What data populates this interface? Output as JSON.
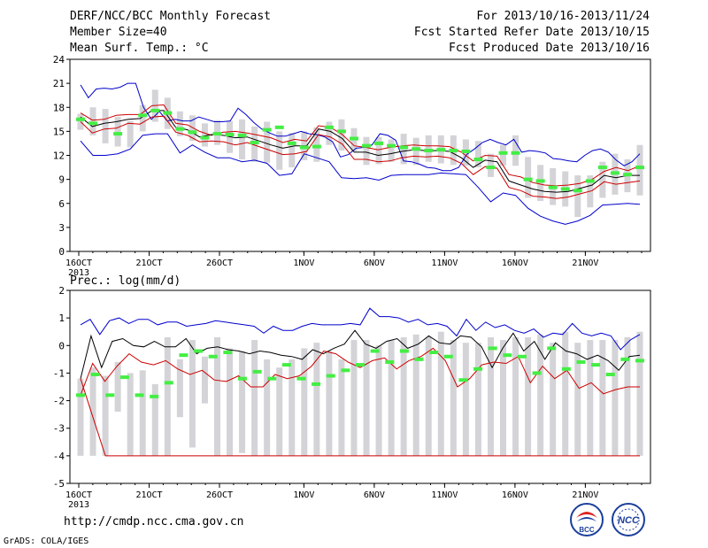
{
  "header": {
    "title": "DERF/NCC/BCC Monthly Forecast",
    "member_size": "Member Size=40",
    "variable": "Mean Surf. Temp.: °C",
    "period": "For 2013/10/16-2013/11/24",
    "start_date": "Fcst Started Refer Date 2013/10/15",
    "produced_date": "Fcst Produced Date 2013/10/16"
  },
  "panel2_label": "Prec.: log(mm/d)",
  "footer": {
    "url": "http://cmdp.ncc.cma.gov.cn",
    "credit": "GrADS: COLA/IGES",
    "logo1_text": "BCC",
    "logo2_text": "NCC"
  },
  "x_ticks": [
    {
      "day": 0,
      "label": "16OCT"
    },
    {
      "day": 5,
      "label": "21OCT"
    },
    {
      "day": 10,
      "label": "26OCT"
    },
    {
      "day": 16,
      "label": "1NOV"
    },
    {
      "day": 21,
      "label": "6NOV"
    },
    {
      "day": 26,
      "label": "11NOV"
    },
    {
      "day": 31,
      "label": "16NOV"
    },
    {
      "day": 36,
      "label": "21NOV"
    }
  ],
  "x_year_label": "2013",
  "colors": {
    "max": "#0000cc",
    "min": "#0000cc",
    "mean": "#000000",
    "spread": "#cc0000",
    "obs": "#44ee44",
    "box": "#d4d4d8"
  },
  "chart_data": [
    {
      "type": "line",
      "title": "Mean Surf. Temp.: °C",
      "ylim": [
        0,
        24
      ],
      "yticks": [
        0,
        3,
        6,
        9,
        12,
        15,
        18,
        21,
        24
      ],
      "x_days": 40,
      "series": [
        {
          "key": "max",
          "values": [
            20.8,
            19.2,
            20.3,
            20.4,
            20.3,
            20.5,
            21.0,
            21.0,
            18.0,
            16.5,
            17.5,
            16.3,
            16.5,
            16.3,
            16.3,
            16.8,
            16.5,
            16.2,
            16.2,
            16.3,
            17.9,
            17.1,
            16.1,
            15.3,
            14.8,
            14.4,
            14.4,
            14.7,
            15.0,
            14.7,
            14.6,
            14.3,
            13.7,
            11.8,
            12.1,
            12.9,
            13.0,
            13.3,
            14.7,
            14.5,
            13.9,
            11.3,
            11.2,
            10.9,
            10.5,
            10.4,
            10.1,
            10.1,
            10.5,
            12.1,
            12.8,
            13.6,
            14.0,
            13.6,
            13.3,
            14.0,
            12.4,
            12.6,
            12.5,
            12.3,
            11.6,
            11.5,
            11.3,
            11.2,
            12.0,
            12.6,
            12.8,
            12.4,
            11.4,
            10.7,
            11.2,
            12.2
          ]
        },
        {
          "key": "ci_upper",
          "values": [
            17.3,
            16.4,
            16.5,
            17.0,
            17.1,
            17.1,
            18.2,
            18.3,
            16.0,
            15.8,
            15.0,
            14.5,
            14.9,
            15.0,
            14.8,
            14.5,
            14.2,
            13.6,
            14.0,
            13.8,
            15.7,
            15.5,
            14.6,
            13.2,
            13.0,
            12.7,
            13.0,
            13.2,
            13.3,
            13.2,
            13.2,
            13.1,
            12.4,
            11.3,
            12.0,
            11.9,
            9.6,
            9.3,
            8.6,
            8.3,
            8.2,
            8.3,
            8.5,
            9.0,
            10.0,
            10.5,
            10.1,
            10.7
          ]
        },
        {
          "key": "mean",
          "values": [
            16.8,
            15.6,
            16.0,
            16.2,
            16.5,
            16.6,
            17.6,
            17.6,
            15.5,
            15.2,
            14.3,
            14.6,
            14.5,
            14.2,
            14.3,
            13.8,
            13.3,
            12.9,
            13.2,
            13.2,
            15.3,
            15.0,
            14.1,
            12.4,
            12.4,
            12.0,
            12.2,
            12.5,
            12.7,
            12.6,
            12.6,
            12.5,
            11.7,
            10.5,
            11.4,
            11.2,
            8.8,
            8.3,
            7.8,
            7.5,
            7.4,
            7.5,
            7.9,
            8.3,
            9.5,
            9.2,
            9.5,
            9.5
          ]
        },
        {
          "key": "ci_lower",
          "values": [
            16.2,
            14.8,
            15.3,
            15.4,
            16.0,
            15.9,
            16.8,
            16.9,
            14.9,
            14.5,
            13.7,
            13.8,
            13.7,
            13.3,
            13.6,
            13.1,
            12.6,
            12.1,
            12.2,
            12.5,
            14.6,
            14.3,
            13.4,
            11.5,
            11.5,
            11.2,
            11.3,
            11.7,
            11.9,
            11.8,
            11.9,
            11.7,
            11.0,
            9.6,
            10.6,
            10.4,
            8.0,
            7.6,
            6.9,
            6.8,
            6.6,
            6.8,
            7.2,
            7.6,
            8.7,
            8.4,
            8.6,
            8.8
          ]
        },
        {
          "key": "min",
          "values": [
            13.8,
            12.0,
            12.0,
            12.2,
            12.8,
            14.5,
            14.7,
            14.7,
            12.3,
            13.3,
            12.4,
            11.7,
            11.7,
            11.2,
            11.4,
            11.0,
            9.5,
            9.7,
            12.2,
            11.7,
            11.2,
            9.2,
            9.1,
            9.2,
            8.9,
            9.5,
            9.6,
            9.6,
            9.6,
            9.8,
            9.7,
            9.6,
            8.0,
            6.2,
            7.3,
            7.0,
            5.4,
            4.4,
            3.8,
            3.4,
            3.8,
            4.5,
            5.8,
            5.9,
            6.0,
            5.9
          ]
        }
      ],
      "obs": [
        16.5,
        16.0,
        null,
        14.7,
        null,
        17.0,
        17.6,
        17.3,
        15.3,
        14.9,
        14.2,
        14.7,
        14.6,
        14.5,
        13.6,
        15.2,
        15.5,
        13.5,
        13.0,
        13.1,
        15.5,
        15.0,
        14.1,
        13.2,
        13.5,
        13.2,
        13.0,
        12.8,
        12.6,
        12.7,
        12.6,
        12.5,
        11.5,
        10.5,
        12.3,
        12.3,
        9.0,
        8.8,
        8.0,
        7.8,
        7.6,
        8.8,
        10.5,
        9.8,
        9.6,
        10.5
      ],
      "boxes": [
        [
          15.2,
          17.2
        ],
        [
          14.5,
          18.0
        ],
        [
          13.5,
          17.8
        ],
        [
          13.1,
          16.8
        ],
        [
          13.0,
          16.3
        ],
        [
          15.0,
          18.3
        ],
        [
          16.2,
          20.2
        ],
        [
          15.3,
          19.2
        ],
        [
          14.4,
          17.5
        ],
        [
          13.8,
          17.0
        ],
        [
          13.1,
          16.0
        ],
        [
          13.3,
          16.4
        ],
        [
          12.3,
          16.3
        ],
        [
          11.5,
          16.5
        ],
        [
          11.2,
          15.6
        ],
        [
          11.1,
          16.2
        ],
        [
          10.2,
          15.0
        ],
        [
          10.5,
          14.8
        ],
        [
          11.4,
          15.0
        ],
        [
          11.2,
          15.5
        ],
        [
          13.3,
          16.2
        ],
        [
          12.6,
          16.5
        ],
        [
          12.5,
          15.4
        ],
        [
          10.8,
          14.3
        ],
        [
          10.9,
          14.3
        ],
        [
          11.2,
          14.0
        ],
        [
          10.9,
          14.7
        ],
        [
          10.8,
          14.2
        ],
        [
          11.2,
          14.5
        ],
        [
          11.0,
          14.5
        ],
        [
          10.8,
          14.5
        ],
        [
          10.7,
          14.0
        ],
        [
          10.5,
          13.8
        ],
        [
          9.3,
          12.2
        ],
        [
          10.7,
          13.3
        ],
        [
          10.7,
          14.5
        ],
        [
          6.7,
          11.8
        ],
        [
          6.3,
          10.8
        ],
        [
          5.8,
          10.4
        ],
        [
          5.6,
          10.0
        ],
        [
          4.3,
          9.5
        ],
        [
          5.5,
          9.5
        ],
        [
          6.7,
          11.2
        ],
        [
          7.1,
          12.2
        ],
        [
          7.4,
          11.5
        ],
        [
          7.0,
          13.3
        ]
      ]
    },
    {
      "type": "line",
      "title": "Prec.: log(mm/d)",
      "ylim": [
        -5,
        2
      ],
      "yticks": [
        -5,
        -4,
        -3,
        -2,
        -1,
        0,
        1,
        2
      ],
      "x_days": 40,
      "series": [
        {
          "key": "max",
          "values": [
            0.75,
            0.95,
            0.4,
            0.9,
            1.0,
            0.8,
            0.95,
            0.95,
            0.75,
            0.85,
            0.85,
            0.7,
            0.75,
            0.8,
            0.9,
            0.85,
            0.8,
            0.75,
            0.7,
            0.45,
            0.7,
            0.55,
            0.55,
            0.7,
            0.8,
            0.75,
            0.75,
            0.75,
            0.8,
            0.75,
            1.35,
            1.05,
            1.05,
            1.0,
            0.85,
            0.95,
            0.75,
            0.8,
            0.7,
            0.35,
            0.95,
            0.55,
            0.85,
            0.65,
            0.75,
            0.55,
            0.45,
            0.6,
            0.3,
            0.45,
            0.4,
            0.8,
            0.45,
            0.35,
            0.45,
            0.35,
            -0.15,
            0.2,
            0.4
          ]
        },
        {
          "key": "mean",
          "values": [
            -1.2,
            0.35,
            -0.8,
            0.15,
            0.25,
            0.0,
            -0.05,
            0.15,
            -0.05,
            -0.05,
            0.25,
            -0.3,
            -0.1,
            -0.05,
            -0.15,
            -0.2,
            -0.3,
            -0.2,
            -0.25,
            -0.35,
            -0.4,
            -0.5,
            -0.15,
            -0.3,
            -0.1,
            0.05,
            0.55,
            0.05,
            -0.1,
            0.15,
            0.25,
            -0.1,
            0.05,
            0.35,
            0.1,
            0.05,
            0.35,
            0.3,
            -0.05,
            -0.8,
            -0.1,
            0.45,
            -0.2,
            0.15,
            -0.5,
            0.1,
            -0.2,
            -0.3,
            -0.5,
            -0.35,
            -0.55,
            -0.9,
            -0.4,
            -0.35
          ]
        },
        {
          "key": "spread",
          "values": [
            -1.2,
            -2.6,
            -4.0,
            -4.0,
            -4.0,
            -4.0,
            -4.0,
            -4.0,
            -4.0,
            -4.0,
            -4.0,
            -4.0,
            -4.0,
            -4.0,
            -4.0,
            -4.0,
            -4.0,
            -4.0,
            -4.0,
            -4.0,
            -4.0,
            -4.0,
            -4.0,
            -4.0,
            -4.0,
            -4.0,
            -4.0,
            -4.0,
            -4.0,
            -4.0,
            -4.0,
            -4.0,
            -4.0,
            -4.0,
            -4.0,
            -4.0,
            -4.0,
            -4.0,
            -4.0,
            -4.0,
            -4.0,
            -4.0,
            -4.0,
            -4.0,
            -4.0,
            -4.0
          ]
        },
        {
          "key": "q_lower",
          "values": [
            -1.8,
            -0.65,
            -1.3,
            -0.75,
            -0.3,
            -0.6,
            -0.7,
            -0.55,
            -0.85,
            -1.05,
            -0.9,
            -1.25,
            -1.3,
            -1.1,
            -1.5,
            -1.5,
            -1.05,
            -1.2,
            -1.1,
            -0.75,
            -0.2,
            -0.3,
            -0.6,
            -0.8,
            -0.55,
            -0.45,
            -0.85,
            -0.55,
            -0.4,
            -0.1,
            -0.55,
            -1.5,
            -1.2,
            -0.7,
            -0.6,
            -0.65,
            -0.4,
            -1.35,
            -0.75,
            -1.2,
            -0.9,
            -1.55,
            -1.35,
            -1.75,
            -1.6,
            -1.5,
            -1.5
          ]
        }
      ],
      "obs": [
        -1.8,
        -1.05,
        -1.8,
        -1.15,
        -1.8,
        -1.85,
        -1.35,
        -0.35,
        -0.2,
        -0.4,
        -0.25,
        -1.2,
        -0.95,
        -1.2,
        -0.7,
        -1.2,
        -1.4,
        -1.1,
        -0.9,
        -0.7,
        -0.2,
        -0.6,
        -0.2,
        -0.5,
        -0.25,
        -0.4,
        -1.25,
        -0.85,
        -0.1,
        -0.35,
        -0.4,
        -1.0,
        -0.1,
        -0.85,
        -0.6,
        -0.7,
        -1.05,
        -0.5,
        -0.55
      ],
      "boxes": [
        [
          -4.0,
          -1.2
        ],
        [
          -4.0,
          -0.8
        ],
        [
          -4.0,
          -1.1
        ],
        [
          -2.4,
          -0.6
        ],
        [
          -4.0,
          -1.0
        ],
        [
          -4.0,
          -0.9
        ],
        [
          -4.0,
          -1.4
        ],
        [
          -4.0,
          0.3
        ],
        [
          -2.6,
          -0.5
        ],
        [
          -3.7,
          0.2
        ],
        [
          -2.1,
          -0.4
        ],
        [
          -4.0,
          0.3
        ],
        [
          -4.0,
          -0.1
        ],
        [
          -3.9,
          -0.2
        ],
        [
          -4.0,
          0.2
        ],
        [
          -4.0,
          -0.5
        ],
        [
          -4.0,
          -0.8
        ],
        [
          -4.0,
          -0.5
        ],
        [
          -4.0,
          -0.1
        ],
        [
          -4.0,
          0.1
        ],
        [
          -4.0,
          -0.2
        ],
        [
          -4.0,
          -0.5
        ],
        [
          -4.0,
          0.2
        ],
        [
          -4.0,
          0.2
        ],
        [
          -4.0,
          0.0
        ],
        [
          -4.0,
          0.2
        ],
        [
          -4.0,
          0.3
        ],
        [
          -4.0,
          0.4
        ],
        [
          -4.0,
          0.3
        ],
        [
          -4.0,
          0.5
        ],
        [
          -4.0,
          0.2
        ],
        [
          -4.0,
          0.1
        ],
        [
          -4.0,
          0.1
        ],
        [
          -4.0,
          0.3
        ],
        [
          -4.0,
          0.2
        ],
        [
          -4.0,
          0.3
        ],
        [
          -4.0,
          0.3
        ],
        [
          -4.0,
          0.4
        ],
        [
          -4.0,
          0.1
        ],
        [
          -4.0,
          0.5
        ],
        [
          -4.0,
          0.1
        ],
        [
          -4.0,
          0.2
        ],
        [
          -4.0,
          0.2
        ],
        [
          -4.0,
          0.2
        ],
        [
          -4.0,
          0.3
        ],
        [
          -4.0,
          0.5
        ]
      ]
    }
  ]
}
